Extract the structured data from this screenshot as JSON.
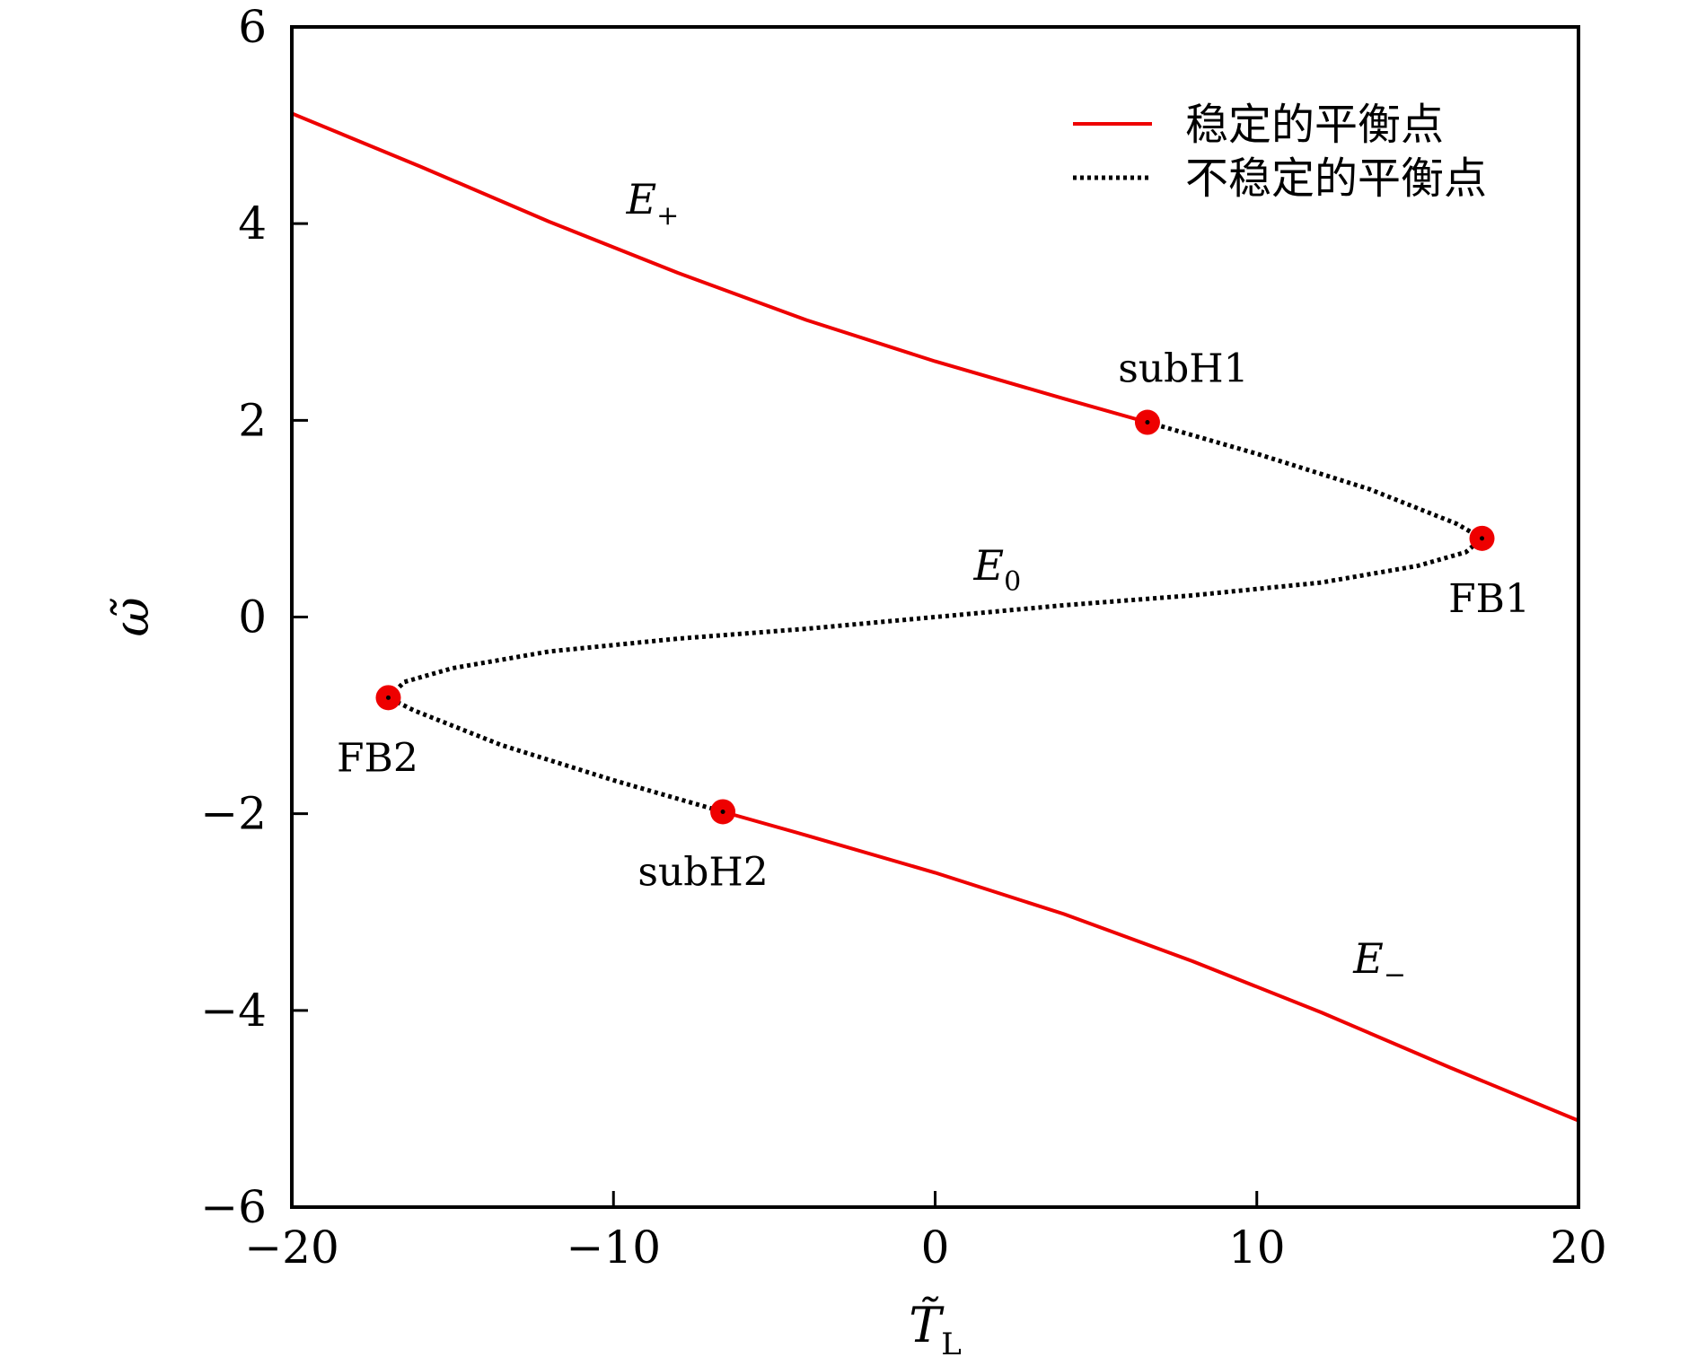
{
  "chart_data": {
    "type": "line",
    "xlabel": "T̃",
    "xlabel_sub": "L",
    "ylabel": "ω̃",
    "xlim": [
      -20,
      20
    ],
    "ylim": [
      -6,
      6
    ],
    "xticks": [
      -20,
      -10,
      0,
      10,
      20
    ],
    "xtick_labels": [
      "−20",
      "−10",
      "0",
      "10",
      "20"
    ],
    "yticks": [
      6,
      4,
      2,
      0,
      -2,
      -4,
      -6
    ],
    "ytick_labels": [
      "6",
      "4",
      "2",
      "0",
      "−2",
      "−4",
      "−6"
    ],
    "colors": {
      "stable": "#ee0000",
      "unstable": "#000000",
      "point": "#ee0000"
    },
    "legend": {
      "placement": "top-right",
      "entries": [
        {
          "label": "稳定的平衡点",
          "style": "solid",
          "color": "#ee0000"
        },
        {
          "label": "不稳定的平衡点",
          "style": "dotted",
          "color": "#000000"
        }
      ]
    },
    "series": [
      {
        "name": "稳定的平衡点",
        "style": "solid",
        "color": "#ee0000",
        "points": [
          [
            -20,
            5.12
          ],
          [
            -16,
            4.58
          ],
          [
            -12,
            4.02
          ],
          [
            -8,
            3.5
          ],
          [
            -4,
            3.02
          ],
          [
            0,
            2.6
          ],
          [
            4,
            2.22
          ],
          [
            6.6,
            1.98
          ]
        ]
      },
      {
        "name": "不稳定的平衡点",
        "style": "dotted",
        "color": "#000000",
        "points": [
          [
            6.6,
            1.98
          ],
          [
            10,
            1.66
          ],
          [
            13.5,
            1.3
          ],
          [
            16.2,
            0.95
          ],
          [
            17.0,
            0.8
          ],
          [
            16.5,
            0.66
          ],
          [
            15,
            0.52
          ],
          [
            12,
            0.35
          ],
          [
            8,
            0.22
          ],
          [
            4,
            0.12
          ],
          [
            0,
            0.0
          ],
          [
            -4,
            -0.12
          ],
          [
            -8,
            -0.22
          ],
          [
            -12,
            -0.35
          ],
          [
            -15,
            -0.52
          ],
          [
            -16.5,
            -0.66
          ],
          [
            -17.0,
            -0.82
          ],
          [
            -16.2,
            -0.95
          ],
          [
            -13.5,
            -1.3
          ],
          [
            -10,
            -1.66
          ],
          [
            -6.6,
            -1.98
          ]
        ]
      },
      {
        "name": "",
        "style": "solid",
        "color": "#ee0000",
        "points": [
          [
            -6.6,
            -1.98
          ],
          [
            -4,
            -2.22
          ],
          [
            0,
            -2.6
          ],
          [
            4,
            -3.02
          ],
          [
            8,
            -3.5
          ],
          [
            12,
            -4.02
          ],
          [
            16,
            -4.58
          ],
          [
            20,
            -5.12
          ]
        ]
      }
    ],
    "special_points": [
      {
        "label": "subH1",
        "x": 6.6,
        "y": 1.98
      },
      {
        "label": "FB1",
        "x": 17.0,
        "y": 0.8
      },
      {
        "label": "FB2",
        "x": -17.0,
        "y": -0.82
      },
      {
        "label": "subH2",
        "x": -6.6,
        "y": -1.98
      }
    ],
    "annotations": [
      {
        "text": "E",
        "sub": "+",
        "x": -9.6,
        "y": 4.1
      },
      {
        "text": "E",
        "sub": "0",
        "x": 1.2,
        "y": 0.38
      },
      {
        "text": "E",
        "sub": "−",
        "x": 13.0,
        "y": -3.62
      }
    ]
  }
}
